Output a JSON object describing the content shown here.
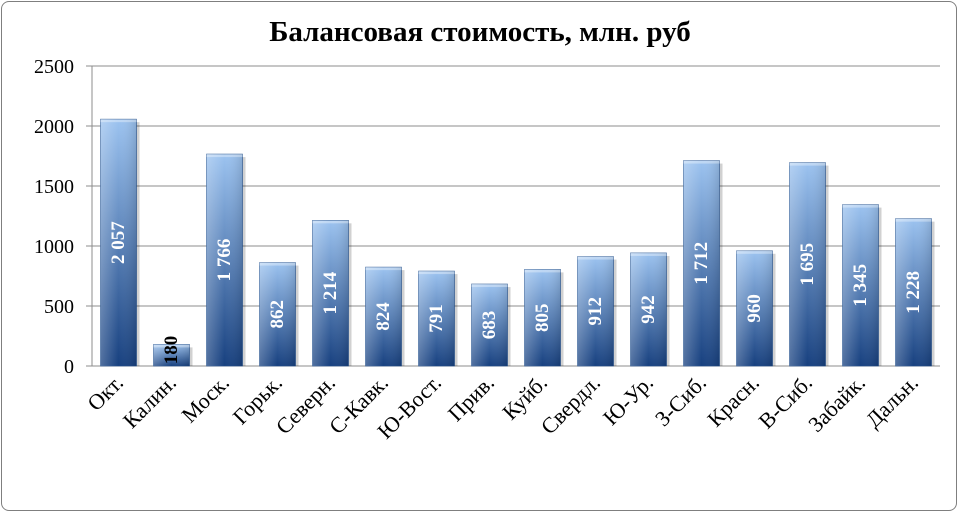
{
  "chart_data": {
    "type": "bar",
    "title": "Балансовая стоимость, млн. руб",
    "categories": [
      "Окт.",
      "Калин.",
      "Моск.",
      "Горьк.",
      "Северн.",
      "С-Кавк.",
      "Ю-Вост.",
      "Прив.",
      "Куйб.",
      "Свердл.",
      "Ю-Ур.",
      "З-Сиб.",
      "Красн.",
      "В-Сиб.",
      "Забайк.",
      "Дальн."
    ],
    "values": [
      2057,
      180,
      1766,
      862,
      1214,
      824,
      791,
      683,
      805,
      912,
      942,
      1712,
      960,
      1695,
      1345,
      1228
    ],
    "data_labels": [
      "2 057",
      "180",
      "1 766",
      "862",
      "1 214",
      "824",
      "791",
      "683",
      "805",
      "912",
      "942",
      "1 712",
      "960",
      "1 695",
      "1 345",
      "1 228"
    ],
    "yticks": [
      "0",
      "500",
      "1000",
      "1500",
      "2000",
      "2500"
    ],
    "ylim": [
      0,
      2500
    ],
    "grid": true,
    "legend": false,
    "colors": {
      "bar_top": "#9cc3f0",
      "bar_bottom": "#17407f",
      "grid": "#8c8c8c"
    }
  }
}
